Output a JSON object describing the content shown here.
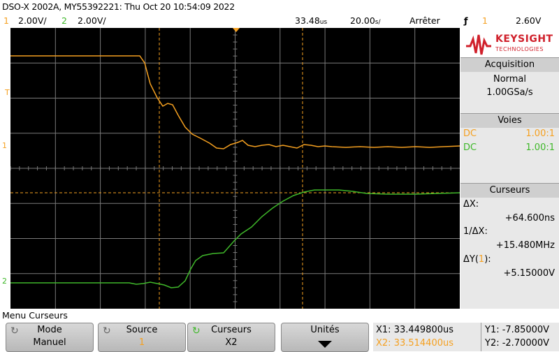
{
  "header": {
    "title": "DSO-X 2002A, MY55392221: Thu Oct 20 10:54:09 2022"
  },
  "scale": {
    "ch1_num": "1",
    "ch1_scale": "2.00V/",
    "ch2_num": "2",
    "ch2_scale": "2.00V/",
    "time_pos": "33.48",
    "time_pos_unit": "us",
    "time_scale": "20.00",
    "time_scale_unit": "s/",
    "time_scale_suffix_note": "",
    "run_state": "Arrêter",
    "trig_src": "1",
    "trig_level": "2.60V",
    "trig_icon": "trigger-edge-icon"
  },
  "screen": {
    "trig_marker": "T",
    "ch1_marker": "1",
    "ch2_marker": "2",
    "colors": {
      "ch1": "#f5a020",
      "ch2": "#3fb82a",
      "grid": "#7a7a7a",
      "cursor": "#f5a020"
    }
  },
  "side": {
    "brand": "KEYSIGHT",
    "brand_sub": "TECHNOLOGIES",
    "acq_title": "Acquisition",
    "acq_mode": "Normal",
    "acq_rate": "1.00GSa/s",
    "voies_title": "Voies",
    "ch1_coupling": "DC",
    "ch1_probe": "1.00:1",
    "ch2_coupling": "DC",
    "ch2_probe": "1.00:1",
    "curs_title": "Curseurs",
    "dx_label": "ΔX:",
    "dx_value": "+64.600ns",
    "inv_dx_label": "1/ΔX:",
    "inv_dx_value": "+15.480MHz",
    "dy_label_pre": "ΔY(",
    "dy_label_ch": "1",
    "dy_label_post": "):",
    "dy_value": "+5.15000V"
  },
  "menu": {
    "title": "Menu Curseurs",
    "keys": [
      {
        "top": "Mode",
        "bottom": "Manuel"
      },
      {
        "top": "Source",
        "bottom": "1"
      },
      {
        "top": "Curseurs",
        "bottom": "X2"
      },
      {
        "top": "Unités",
        "bottom": ""
      }
    ]
  },
  "readout": {
    "x1": "X1: 33.449800us",
    "x2": "X2: 33.514400us",
    "y1": "Y1: -7.85000V",
    "y2": "Y2: -2.70000V"
  }
}
